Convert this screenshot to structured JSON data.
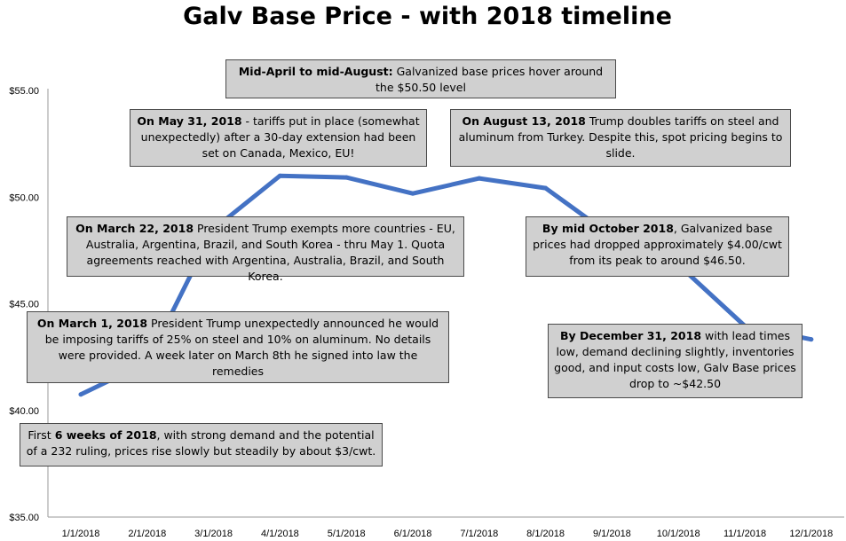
{
  "chart_data": {
    "type": "line",
    "title": "Galv Base Price - with 2018 timeline",
    "xlabel": "",
    "ylabel": "",
    "categories": [
      "1/1/2018",
      "2/1/2018",
      "3/1/2018",
      "4/1/2018",
      "5/1/2018",
      "6/1/2018",
      "7/1/2018",
      "8/1/2018",
      "9/1/2018",
      "10/1/2018",
      "11/1/2018",
      "12/1/2018"
    ],
    "series": [
      {
        "values": [
          40.75,
          42.25,
          48.5,
          51.0,
          50.92,
          50.17,
          50.88,
          50.42,
          48.17,
          46.83,
          43.96,
          43.33
        ],
        "color": "#4472c4"
      }
    ],
    "y_ticks": [
      "$35.00",
      "$40.00",
      "$45.00",
      "$50.00",
      "$55.00"
    ],
    "ylim": [
      35,
      55
    ],
    "grid": false,
    "legend": "none",
    "annotations": [
      {
        "bold": "Mid-April to mid-August:",
        "rest": " Galvanized base prices hover around the $50.50  level"
      },
      {
        "bold": "On May 31, 2018",
        "rest": "  - tariffs put in place (somewhat unexpectedly) after a 30-day extension had been set on Canada, Mexico, EU!"
      },
      {
        "bold": "On August 13, 2018",
        "rest": " Trump doubles tariffs on steel and aluminum from Turkey. Despite this, spot pricing begins to slide."
      },
      {
        "bold": "On March 22, 2018",
        "rest": "  President Trump exempts more countries - EU, Australia, Argentina, Brazil, and South Korea - thru May 1. Quota agreements reached with Argentina, Australia, Brazil, and South Korea."
      },
      {
        "bold": "By mid October 2018",
        "rest": ",  Galvanized base prices had dropped approximately $4.00/cwt from its peak to around $46.50."
      },
      {
        "bold": "On March 1, 2018",
        "rest": "  President Trump unexpectedly announced he would be imposing tariffs of 25% on steel and 10% on aluminum. No details were provided. A week later on March 8th he signed into law the remedies"
      },
      {
        "bold": "By December 31, 2018",
        "rest": "  with lead times low, demand declining slightly, inventories good, and input costs low, Galv Base prices drop to ~$42.50"
      },
      {
        "pre": "First ",
        "bold": "6 weeks of 2018",
        "rest": ",  with strong demand and the potential of a 232  ruling, prices rise slowly but steadily by about $3/cwt."
      }
    ]
  }
}
